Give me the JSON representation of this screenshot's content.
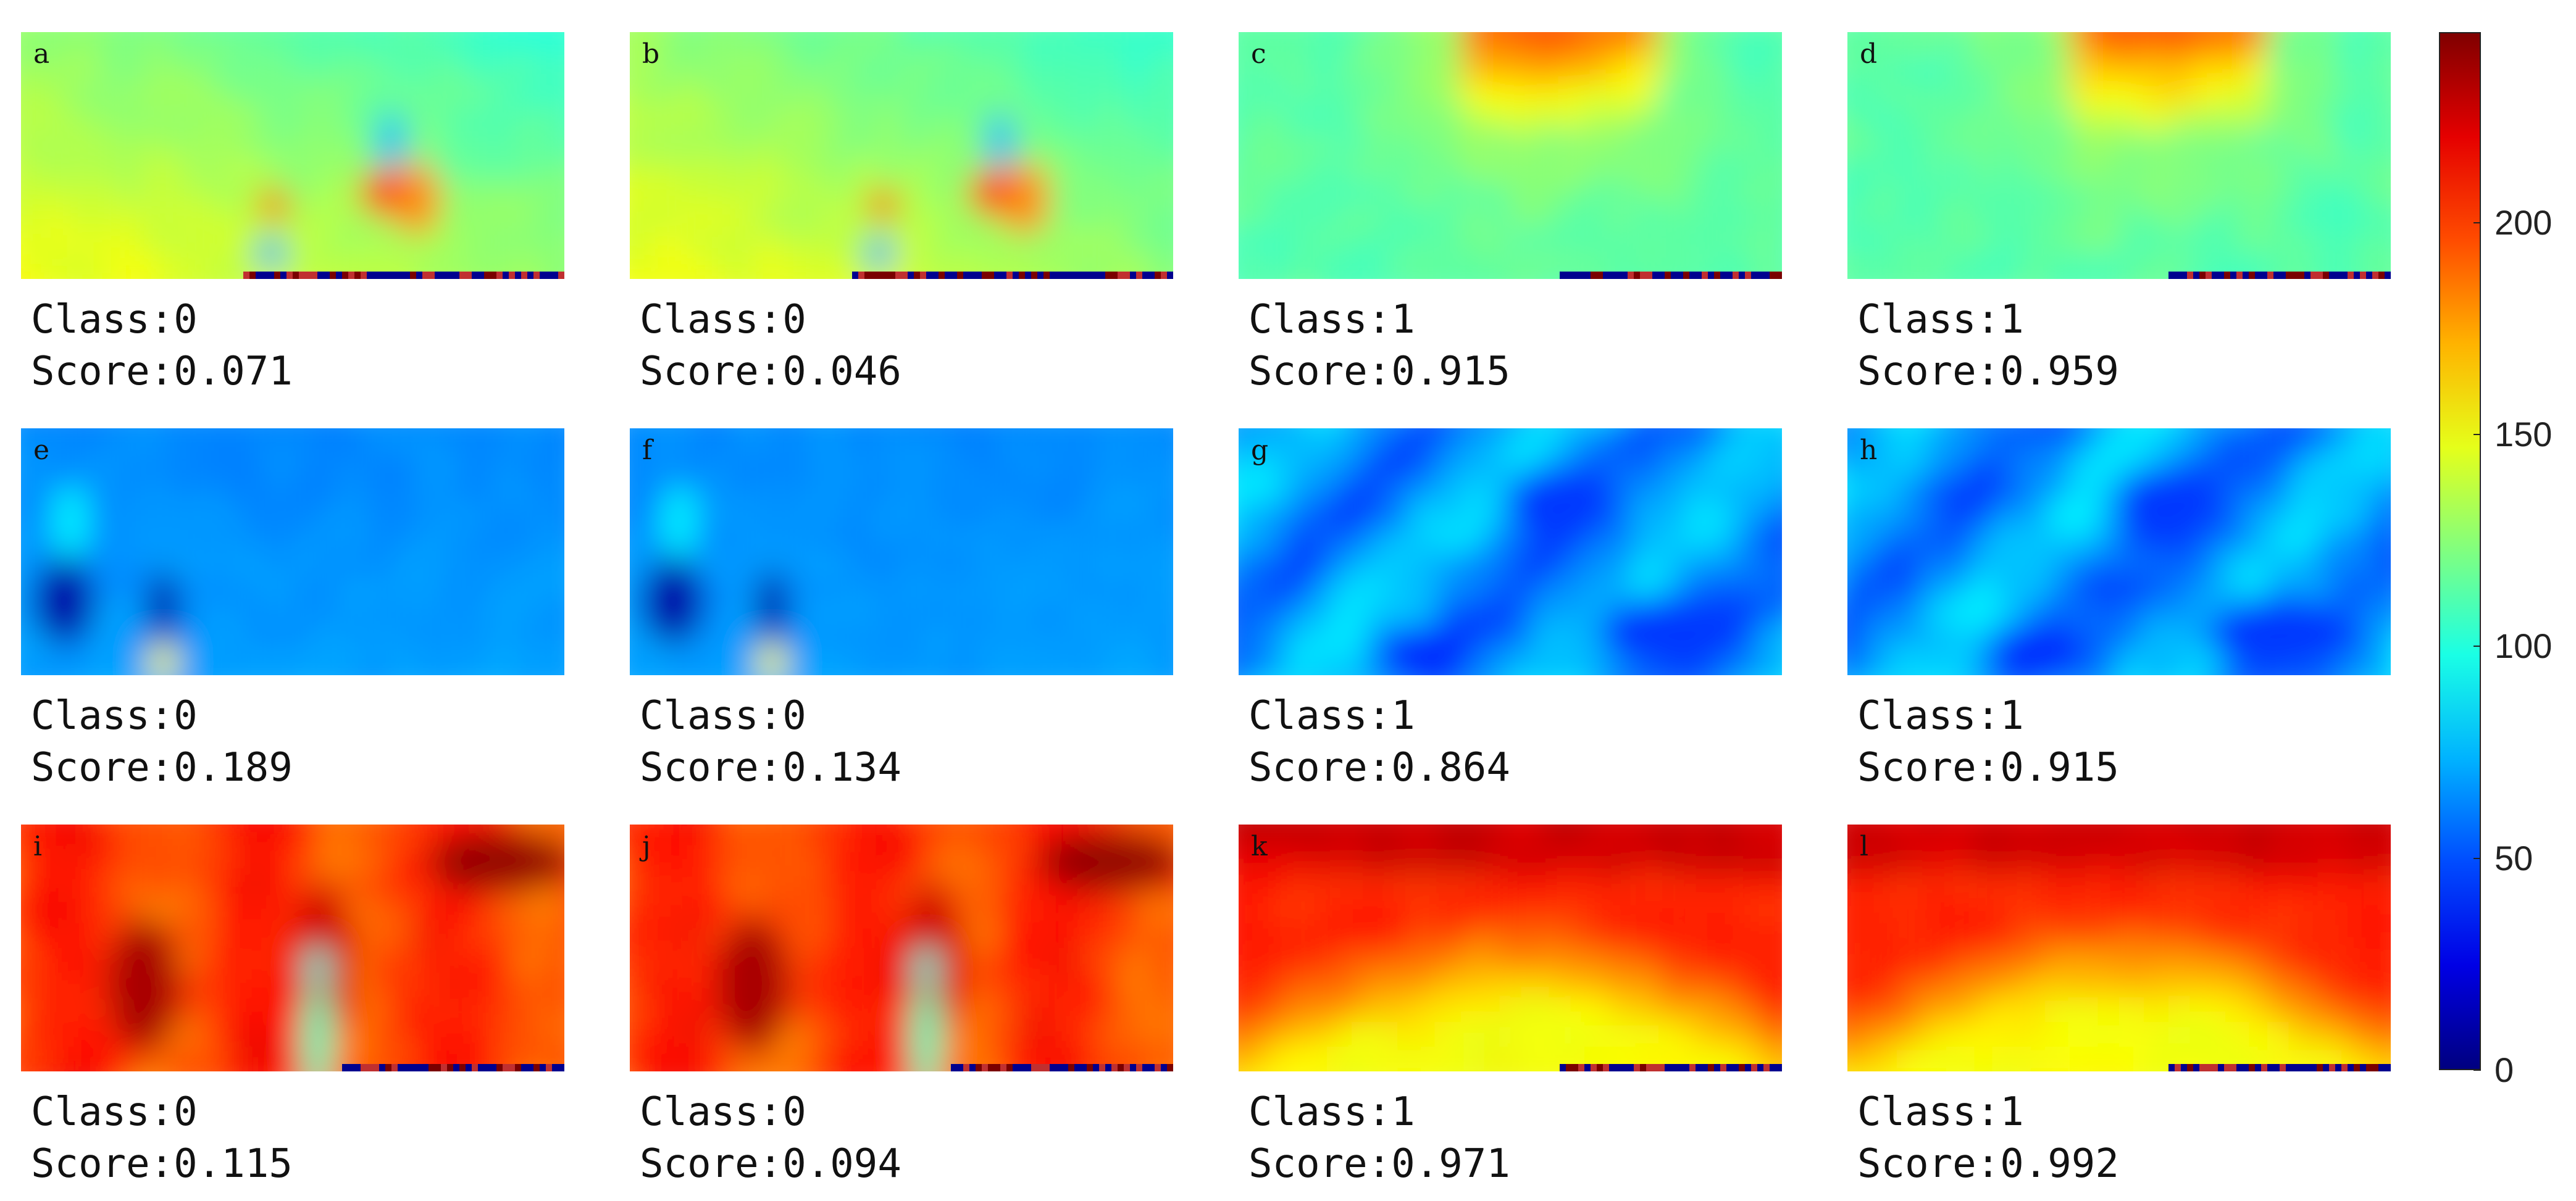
{
  "panels": [
    {
      "id": "a",
      "class": "Class:0",
      "score": "Score:0.071",
      "theme": "yellow"
    },
    {
      "id": "b",
      "class": "Class:0",
      "score": "Score:0.046",
      "theme": "yellow"
    },
    {
      "id": "c",
      "class": "Class:1",
      "score": "Score:0.915",
      "theme": "cyan-orange"
    },
    {
      "id": "d",
      "class": "Class:1",
      "score": "Score:0.959",
      "theme": "cyan-orange"
    },
    {
      "id": "e",
      "class": "Class:0",
      "score": "Score:0.189",
      "theme": "blue"
    },
    {
      "id": "f",
      "class": "Class:0",
      "score": "Score:0.134",
      "theme": "blue"
    },
    {
      "id": "g",
      "class": "Class:1",
      "score": "Score:0.864",
      "theme": "cyan-blue"
    },
    {
      "id": "h",
      "class": "Class:1",
      "score": "Score:0.915",
      "theme": "cyan-blue"
    },
    {
      "id": "i",
      "class": "Class:0",
      "score": "Score:0.115",
      "theme": "red"
    },
    {
      "id": "j",
      "class": "Class:0",
      "score": "Score:0.094",
      "theme": "red"
    },
    {
      "id": "k",
      "class": "Class:1",
      "score": "Score:0.971",
      "theme": "dark-red"
    },
    {
      "id": "l",
      "class": "Class:1",
      "score": "Score:0.992",
      "theme": "dark-red"
    }
  ],
  "colorbar": {
    "ticks": [
      "0",
      "50",
      "100",
      "150",
      "200"
    ],
    "range": [
      0,
      245
    ],
    "colormap": "jet"
  },
  "colors": {
    "yellow": "#d8ee5a",
    "cyan": "#5cf0c0",
    "blue": "#1a62ee",
    "orange": "#f08a1a",
    "red": "#ee3a10",
    "dark_red": "#7a0000",
    "dark_blue": "#000080"
  }
}
